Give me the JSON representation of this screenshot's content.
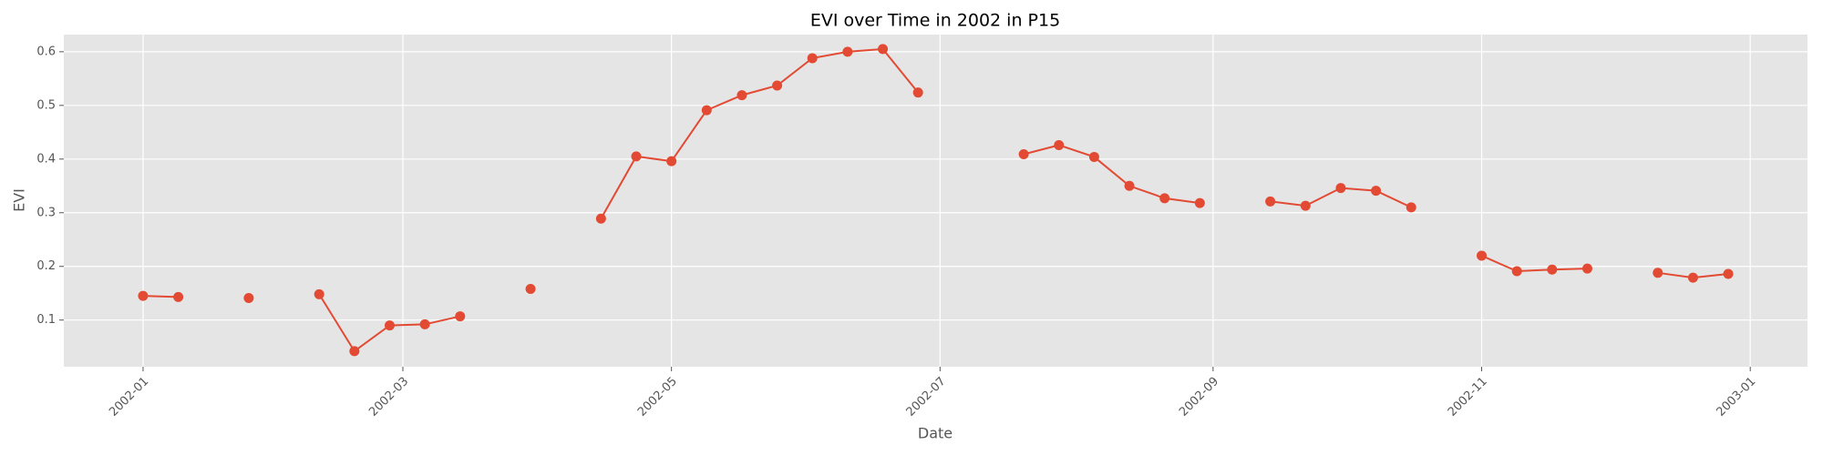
{
  "chart_data": {
    "type": "line",
    "title": "EVI over Time in 2002 in P15",
    "x_label": "Date",
    "y_label": "EVI",
    "x": [
      "2002-01-01",
      "2002-01-09",
      "2002-01-17",
      "2002-01-25",
      "2002-02-02",
      "2002-02-10",
      "2002-02-18",
      "2002-02-26",
      "2002-03-06",
      "2002-03-14",
      "2002-03-22",
      "2002-03-30",
      "2002-04-07",
      "2002-04-15",
      "2002-04-23",
      "2002-05-01",
      "2002-05-09",
      "2002-05-17",
      "2002-05-25",
      "2002-06-02",
      "2002-06-10",
      "2002-06-18",
      "2002-06-26",
      "2002-07-04",
      "2002-07-12",
      "2002-07-20",
      "2002-07-28",
      "2002-08-05",
      "2002-08-13",
      "2002-08-21",
      "2002-08-29",
      "2002-09-06",
      "2002-09-14",
      "2002-09-22",
      "2002-09-30",
      "2002-10-08",
      "2002-10-16",
      "2002-10-24",
      "2002-11-01",
      "2002-11-09",
      "2002-11-17",
      "2002-11-25",
      "2002-12-03",
      "2002-12-11",
      "2002-12-19",
      "2002-12-27"
    ],
    "series": [
      {
        "color": "#e24a33",
        "values": [
          0.145,
          0.143,
          null,
          0.141,
          null,
          0.148,
          0.042,
          0.09,
          0.092,
          0.107,
          null,
          0.158,
          null,
          0.289,
          0.405,
          0.396,
          0.491,
          0.519,
          0.537,
          0.588,
          0.6,
          0.605,
          0.524,
          null,
          null,
          0.409,
          0.426,
          0.404,
          0.35,
          0.327,
          0.318,
          null,
          0.321,
          0.313,
          0.346,
          0.341,
          0.31,
          null,
          0.22,
          0.191,
          0.194,
          0.196,
          null,
          0.188,
          0.179,
          0.186
        ]
      }
    ],
    "xlim": [
      "2001-12-14",
      "2003-01-14"
    ],
    "xticks": [
      "2002-01",
      "2002-03",
      "2002-05",
      "2002-07",
      "2002-09",
      "2002-11",
      "2003-01"
    ],
    "ylim": [
      0.013,
      0.632
    ],
    "yticks": [
      0.1,
      0.2,
      0.3,
      0.4,
      0.5,
      0.6
    ],
    "grid": true
  }
}
